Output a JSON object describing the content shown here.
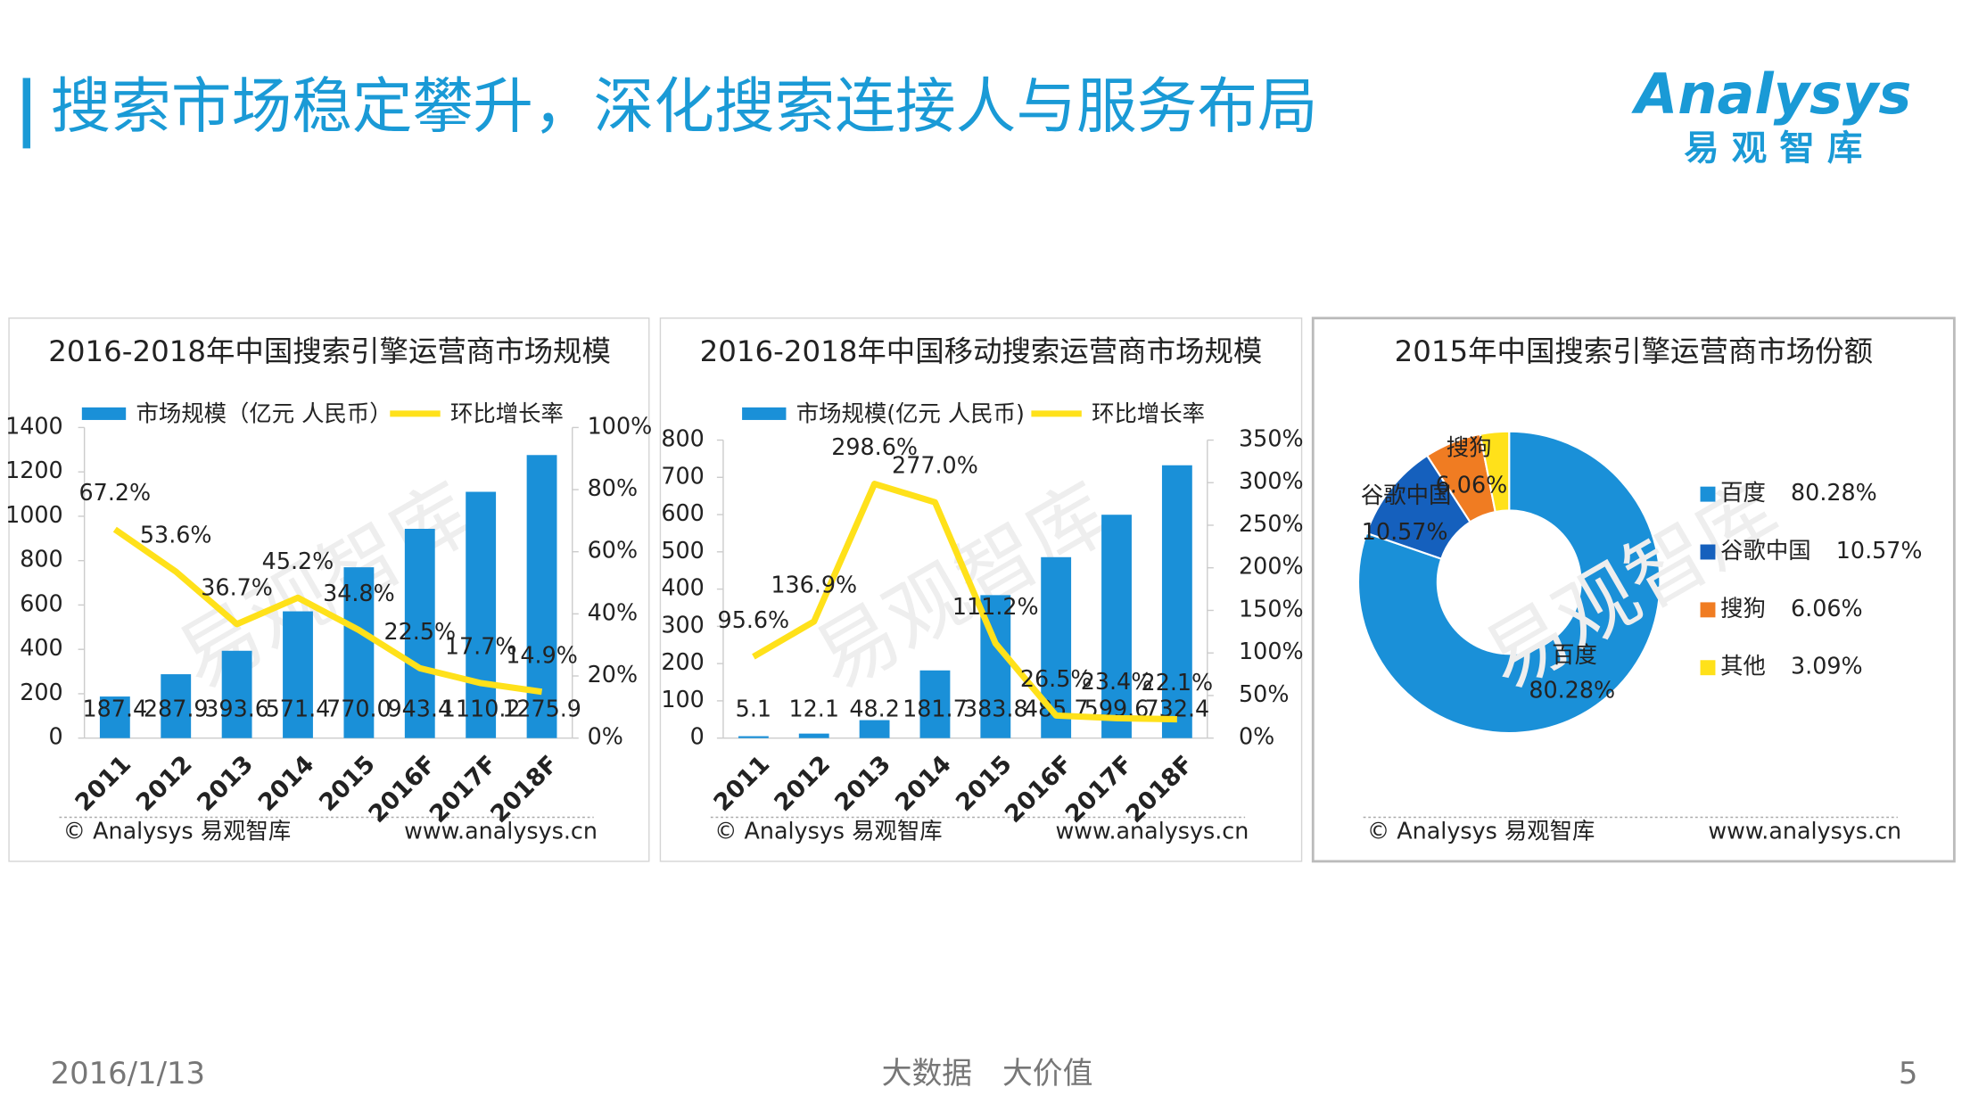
{
  "header": {
    "title": "搜索市场稳定攀升，深化搜索连接人与服务布局",
    "logo": "Analysys",
    "logo_sub": "易观智库"
  },
  "watermark": "易观智库",
  "chart_data": [
    {
      "type": "combo",
      "title": "2016-2018年中国搜索引擎运营商市场规模",
      "categories": [
        "2011",
        "2012",
        "2013",
        "2014",
        "2015",
        "2016F",
        "2017F",
        "2018F"
      ],
      "series": [
        {
          "name": "市场规模（亿元 人民币）",
          "kind": "bar",
          "color": "#1a90d8",
          "values": [
            187.4,
            287.9,
            393.6,
            571.4,
            770.0,
            943.4,
            1110.2,
            1275.9
          ],
          "value_labels": [
            "187.4",
            "287.9",
            "393.6",
            "571.4",
            "770.0",
            "943.4",
            "1110.2",
            "1275.9"
          ]
        },
        {
          "name": "环比增长率",
          "kind": "line",
          "axis": "y2",
          "color": "#ffe11a",
          "values": [
            67.2,
            53.6,
            36.7,
            45.2,
            34.8,
            22.5,
            17.7,
            14.9
          ],
          "value_labels": [
            "67.2%",
            "53.6%",
            "36.7%",
            "45.2%",
            "34.8%",
            "22.5%",
            "17.7%",
            "14.9%"
          ]
        }
      ],
      "ylim": [
        0,
        1400
      ],
      "yticks": [
        0,
        200,
        400,
        600,
        800,
        1000,
        1200,
        1400
      ],
      "y2lim": [
        0,
        100
      ],
      "y2ticks": [
        {
          "value": 0,
          "label": "0%"
        },
        {
          "value": 20,
          "label": "20%"
        },
        {
          "value": 40,
          "label": "40%"
        },
        {
          "value": 60,
          "label": "60%"
        },
        {
          "value": 80,
          "label": "80%"
        },
        {
          "value": 100,
          "label": "100%"
        }
      ],
      "source": "© Analysys 易观智库",
      "url": "www.analysys.cn"
    },
    {
      "type": "combo",
      "title": "2016-2018年中国移动搜索运营商市场规模",
      "categories": [
        "2011",
        "2012",
        "2013",
        "2014",
        "2015",
        "2016F",
        "2017F",
        "2018F"
      ],
      "series": [
        {
          "name": "市场规模(亿元 人民币)",
          "kind": "bar",
          "color": "#1a90d8",
          "values": [
            5.1,
            12.1,
            48.2,
            181.7,
            383.8,
            485.7,
            599.6,
            732.4
          ]
        },
        {
          "name": "环比增长率",
          "kind": "line",
          "axis": "y2",
          "color": "#ffe11a",
          "values": [
            95.6,
            136.9,
            298.6,
            277.0,
            111.2,
            26.5,
            23.4,
            22.1
          ],
          "value_labels": [
            "95.6%",
            "136.9%",
            "298.6%",
            "277.0%",
            "111.2%",
            "26.5%",
            "23.4%",
            "22.1%"
          ]
        }
      ],
      "ylim": [
        0,
        800
      ],
      "yticks": [
        0,
        100,
        200,
        300,
        400,
        500,
        600,
        700,
        800
      ],
      "y2lim": [
        0,
        350
      ],
      "y2ticks": [
        {
          "value": 0,
          "label": "0%"
        },
        {
          "value": 50,
          "label": "50%"
        },
        {
          "value": 100,
          "label": "100%"
        },
        {
          "value": 150,
          "label": "150%"
        },
        {
          "value": 200,
          "label": "200%"
        },
        {
          "value": 250,
          "label": "250%"
        },
        {
          "value": 300,
          "label": "300%"
        },
        {
          "value": 350,
          "label": "350%"
        }
      ],
      "source": "© Analysys 易观智库",
      "url": "www.analysys.cn"
    },
    {
      "type": "donut",
      "title": "2015年中国搜索引擎运营商市场份额",
      "categories": [
        "百度",
        "谷歌中国",
        "搜狗",
        "其他"
      ],
      "values": [
        80.28,
        10.57,
        6.06,
        3.09
      ],
      "value_labels": [
        "80.28%",
        "10.57%",
        "6.06%",
        "3.09%"
      ],
      "colors": [
        "#1a90d8",
        "#1560bd",
        "#f07c22",
        "#ffe11a"
      ],
      "source": "© Analysys 易观智库",
      "url": "www.analysys.cn"
    }
  ],
  "footer": {
    "date": "2016/1/13",
    "slogan": "大数据　大价值",
    "page": "5"
  }
}
